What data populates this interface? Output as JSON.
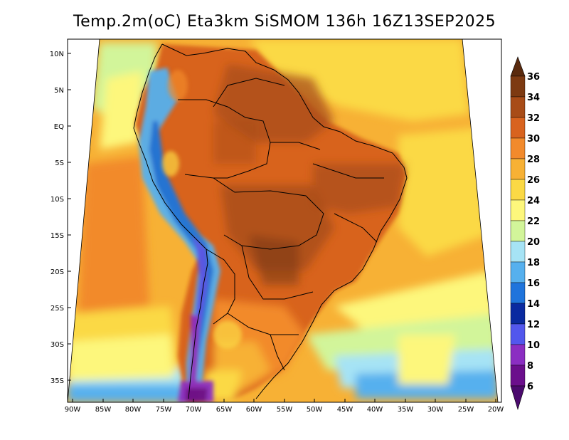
{
  "title": "Temp.2m(oC) Eta3km SiSMOM 136h 16Z13SEP2025",
  "map": {
    "lat_ticks": [
      "10N",
      "5N",
      "EQ",
      "5S",
      "10S",
      "15S",
      "20S",
      "25S",
      "30S",
      "35S"
    ],
    "lon_ticks": [
      "90W",
      "85W",
      "80W",
      "75W",
      "70W",
      "65W",
      "60W",
      "55W",
      "50W",
      "45W",
      "40W",
      "35W",
      "30W",
      "25W",
      "20W"
    ]
  },
  "colorbar": {
    "labels": [
      "36",
      "34",
      "32",
      "30",
      "28",
      "26",
      "24",
      "22",
      "20",
      "18",
      "16",
      "14",
      "12",
      "10",
      "8",
      "6"
    ],
    "colors": {
      "above_36": "#5a2a0e",
      "34_36": "#7d3a12",
      "32_34": "#a84c18",
      "30_32": "#d8631f",
      "28_30": "#f28a2c",
      "26_28": "#f7b135",
      "24_26": "#fbd945",
      "22_24": "#fdf77c",
      "20_22": "#d2f59a",
      "18_20": "#a6e3f5",
      "16_18": "#56b0ee",
      "14_16": "#1f74dc",
      "12_14": "#0a2aa0",
      "10_12": "#5257ed",
      "8_10": "#8b2ec2",
      "6_8": "#6b0f8c",
      "below_6": "#4b0a6e"
    }
  }
}
